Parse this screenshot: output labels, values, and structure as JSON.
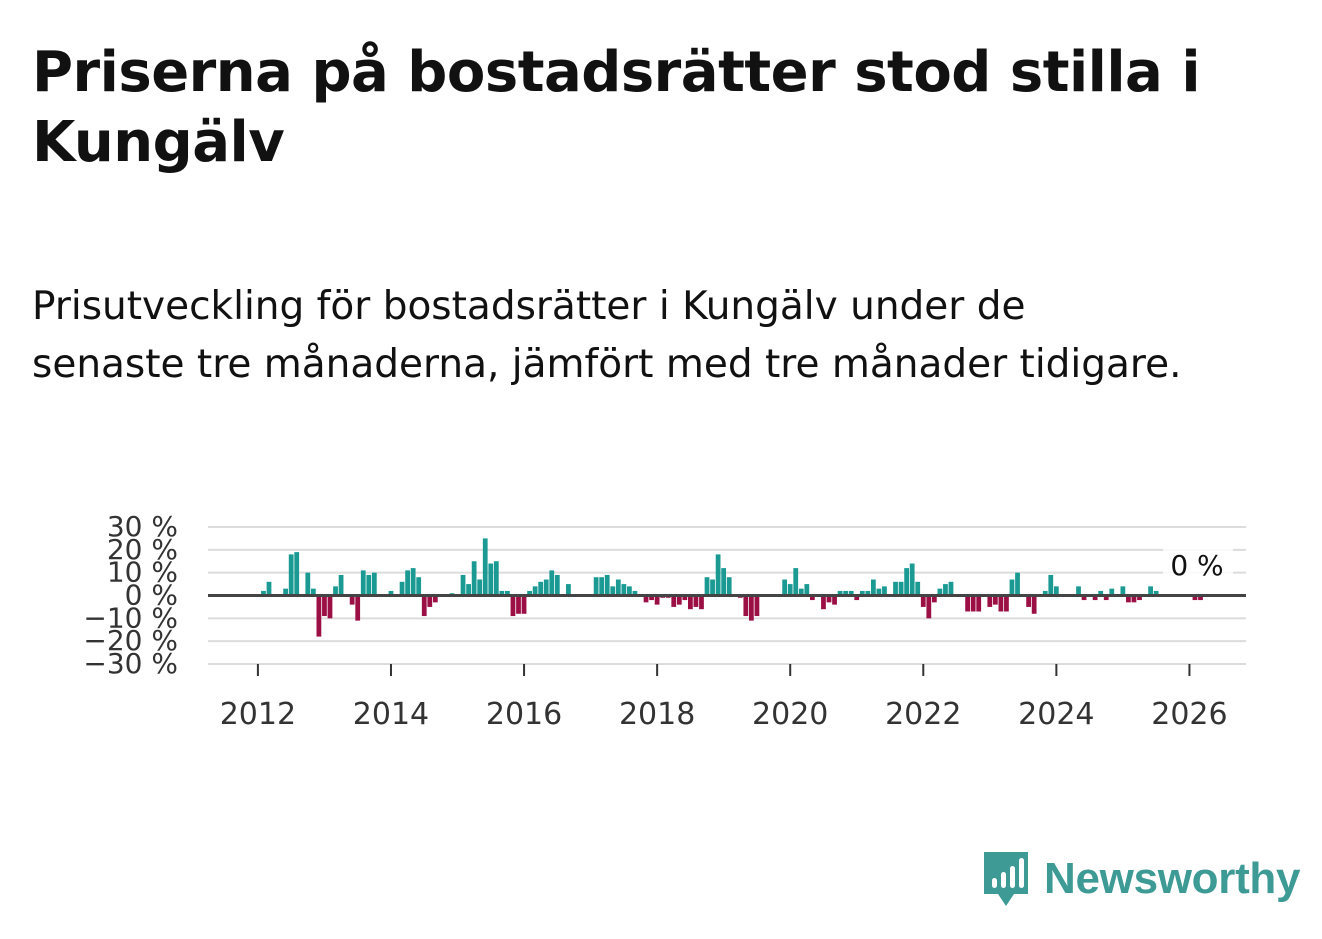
{
  "title": "Priserna på bostadsrätter stod stilla i Kungälv",
  "subtitle": "Prisutveckling för bostadsrätter i Kungälv under de senaste tre månaderna, jämfört med tre månader tidigare.",
  "brand": {
    "name": "Newsworthy",
    "icon": "newsworthy-logo-icon"
  },
  "colors": {
    "positive": "#1a9a93",
    "negative": "#9b0f45",
    "grid": "#dcdcdc",
    "zero": "#444444",
    "brand": "#3d9a95"
  },
  "chart_data": {
    "type": "bar",
    "title": "",
    "xlabel": "",
    "ylabel": "",
    "ylim": [
      -30,
      30
    ],
    "y_ticks": [
      {
        "value": 30,
        "label": "30 %"
      },
      {
        "value": 20,
        "label": "20 %"
      },
      {
        "value": 10,
        "label": "10 %"
      },
      {
        "value": 0,
        "label": "0 %"
      },
      {
        "value": -10,
        "label": "−10 %"
      },
      {
        "value": -20,
        "label": "−20 %"
      },
      {
        "value": -30,
        "label": "−30 %"
      }
    ],
    "x_range": [
      2011.25,
      2026.85
    ],
    "x_ticks": [
      {
        "value": 2012,
        "label": "2012"
      },
      {
        "value": 2014,
        "label": "2014"
      },
      {
        "value": 2016,
        "label": "2016"
      },
      {
        "value": 2018,
        "label": "2018"
      },
      {
        "value": 2020,
        "label": "2020"
      },
      {
        "value": 2022,
        "label": "2022"
      },
      {
        "value": 2024,
        "label": "2024"
      },
      {
        "value": 2026,
        "label": "2026"
      }
    ],
    "x_start": 2012.0,
    "x_step": 0.08333,
    "values": [
      0,
      2,
      6,
      0,
      0,
      3,
      18,
      19,
      0,
      10,
      3,
      -18,
      -9,
      -10,
      4,
      9,
      0,
      -4,
      -11,
      11,
      9,
      10,
      0,
      0,
      2,
      0,
      6,
      11,
      12,
      8,
      -9,
      -5,
      -3,
      0,
      0,
      1,
      0,
      9,
      5,
      15,
      7,
      25,
      14,
      15,
      2,
      2,
      -9,
      -8,
      -8,
      2,
      4,
      6,
      7,
      11,
      9,
      0,
      5,
      0,
      0,
      0,
      0,
      8,
      8,
      9,
      4,
      7,
      5,
      4,
      2,
      0,
      -3,
      -2,
      -4,
      -1,
      -1,
      -5,
      -4,
      -2,
      -6,
      -5,
      -6,
      8,
      7,
      18,
      12,
      8,
      0,
      -1,
      -9,
      -11,
      -9,
      0,
      0,
      0,
      0,
      7,
      5,
      12,
      3,
      5,
      -2,
      0,
      -6,
      -3,
      -4,
      2,
      2,
      2,
      -2,
      2,
      2,
      7,
      3,
      4,
      0,
      6,
      6,
      12,
      14,
      6,
      -5,
      -10,
      -3,
      3,
      5,
      6,
      0,
      0,
      -7,
      -7,
      -7,
      0,
      -5,
      -4,
      -7,
      -7,
      7,
      10,
      0,
      -5,
      -8,
      0,
      2,
      9,
      4,
      0,
      0,
      0,
      4,
      -2,
      0,
      -2,
      2,
      -2,
      3,
      0,
      4,
      -3,
      -3,
      -2,
      0,
      4,
      2,
      0,
      0,
      0,
      0,
      0,
      0,
      -2,
      -2,
      0,
      0,
      0
    ],
    "last_value_label": "0 %"
  }
}
